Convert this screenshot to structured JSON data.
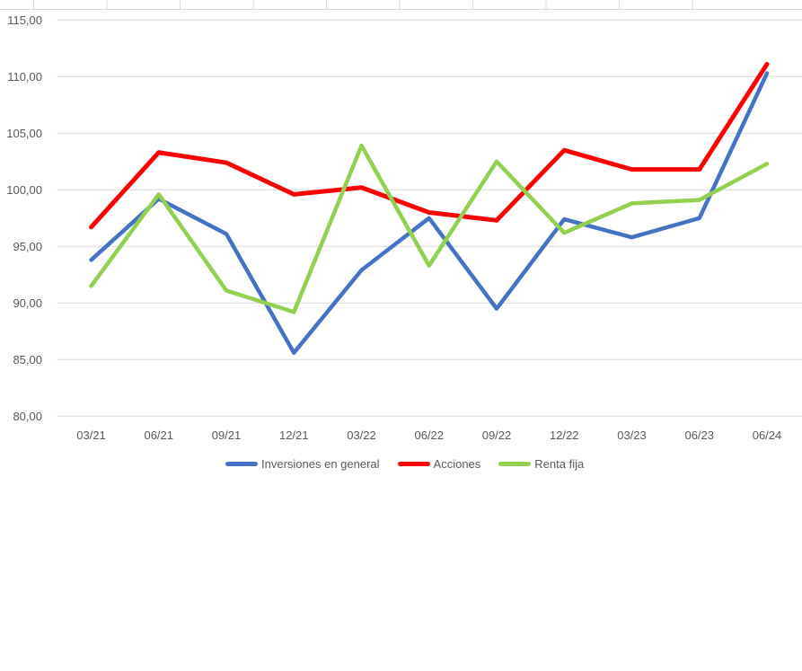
{
  "chart_data": {
    "type": "line",
    "categories": [
      "03/21",
      "06/21",
      "09/21",
      "12/21",
      "03/22",
      "06/22",
      "09/22",
      "12/22",
      "03/23",
      "06/23",
      "06/24"
    ],
    "series": [
      {
        "name": "Inversiones en general",
        "color": "#4472C4",
        "stroke_width": 4.5,
        "values": [
          93.8,
          99.2,
          96.1,
          85.6,
          92.9,
          97.5,
          89.5,
          97.4,
          95.8,
          97.5,
          110.3
        ]
      },
      {
        "name": "Acciones",
        "color": "#FE0000",
        "stroke_width": 5,
        "values": [
          96.7,
          103.3,
          102.4,
          99.6,
          100.2,
          98.0,
          97.3,
          103.5,
          101.8,
          101.8,
          111.1
        ]
      },
      {
        "name": "Renta fija",
        "color": "#92D050",
        "stroke_width": 4.5,
        "values": [
          91.5,
          99.6,
          91.1,
          89.2,
          103.9,
          93.3,
          102.5,
          96.2,
          98.8,
          99.1,
          102.3
        ]
      }
    ],
    "ylabel": "",
    "xlabel": "",
    "ylim": [
      80,
      115
    ],
    "y_axis": {
      "tick_values": [
        115,
        110,
        105,
        100,
        95,
        90,
        85,
        80
      ],
      "tick_labels": [
        "115,00",
        "110,00",
        "105,00",
        "100,00",
        "95,00",
        "90,00",
        "85,00",
        "80,00"
      ]
    },
    "grid": true,
    "legend_position": "bottom"
  },
  "legend": {
    "items": [
      {
        "label": "Inversiones en general"
      },
      {
        "label": "Acciones"
      },
      {
        "label": "Renta fija"
      }
    ]
  },
  "colors": {
    "gridline": "#D9D9D9",
    "axis_text": "#595959",
    "background": "#FFFFFF",
    "sheet_border": "#D9D9D9"
  }
}
